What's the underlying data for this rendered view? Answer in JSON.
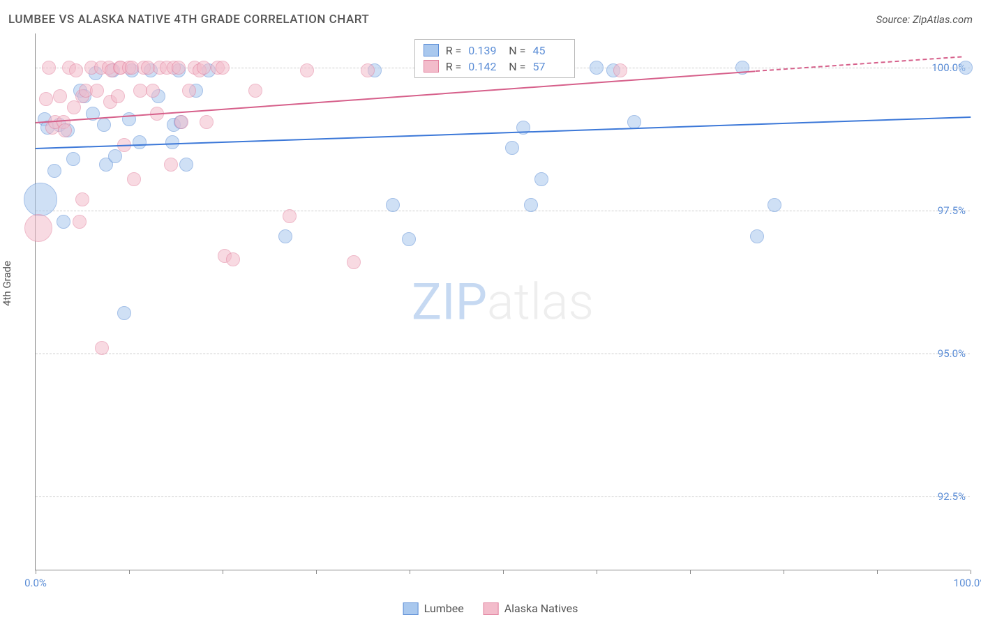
{
  "title": "LUMBEE VS ALASKA NATIVE 4TH GRADE CORRELATION CHART",
  "source": "Source: ZipAtlas.com",
  "ylabel": "4th Grade",
  "watermark_a": "ZIP",
  "watermark_b": "atlas",
  "chart": {
    "type": "scatter",
    "xlim": [
      0,
      100
    ],
    "ylim": [
      91.2,
      100.6
    ],
    "ytick_values": [
      92.5,
      95.0,
      97.5,
      100.0
    ],
    "ytick_labels": [
      "92.5%",
      "95.0%",
      "97.5%",
      "100.0%"
    ],
    "xtick_values": [
      0,
      10,
      20,
      30,
      40,
      50,
      60,
      70,
      80,
      90,
      100
    ],
    "xtick_labels_shown": {
      "0": "0.0%",
      "100": "100.0%"
    },
    "background_color": "#ffffff",
    "grid_color": "#cccccc",
    "axis_color": "#888888",
    "tick_label_color": "#5b8dd6",
    "series": [
      {
        "name": "Lumbee",
        "fill": "#a9c8ee",
        "stroke": "#5b8dd6",
        "fill_opacity": 0.55,
        "default_r": 10,
        "trend": {
          "x1": 0,
          "y1": 98.6,
          "x2": 100,
          "y2": 99.15,
          "color": "#3c78d8",
          "width": 2
        },
        "R": "0.139",
        "N": "45",
        "points": [
          {
            "x": 0.5,
            "y": 97.7,
            "r": 24
          },
          {
            "x": 1,
            "y": 99.1
          },
          {
            "x": 1.3,
            "y": 98.95
          },
          {
            "x": 2,
            "y": 98.2
          },
          {
            "x": 2.5,
            "y": 99.0
          },
          {
            "x": 3,
            "y": 97.3
          },
          {
            "x": 3.4,
            "y": 98.9
          },
          {
            "x": 4,
            "y": 98.4
          },
          {
            "x": 4.8,
            "y": 99.6
          },
          {
            "x": 5.2,
            "y": 99.5
          },
          {
            "x": 6.1,
            "y": 99.2
          },
          {
            "x": 6.4,
            "y": 99.9
          },
          {
            "x": 7.3,
            "y": 99.0
          },
          {
            "x": 7.5,
            "y": 98.3
          },
          {
            "x": 8.3,
            "y": 99.95
          },
          {
            "x": 8.5,
            "y": 98.45
          },
          {
            "x": 9.5,
            "y": 95.7
          },
          {
            "x": 10.0,
            "y": 99.1
          },
          {
            "x": 10.3,
            "y": 99.95
          },
          {
            "x": 11.1,
            "y": 98.7
          },
          {
            "x": 12.3,
            "y": 99.95
          },
          {
            "x": 13.1,
            "y": 99.5
          },
          {
            "x": 14.6,
            "y": 98.7
          },
          {
            "x": 14.8,
            "y": 99.0
          },
          {
            "x": 15.3,
            "y": 99.95
          },
          {
            "x": 15.5,
            "y": 99.05
          },
          {
            "x": 16.1,
            "y": 98.3
          },
          {
            "x": 17.2,
            "y": 99.6
          },
          {
            "x": 18.5,
            "y": 99.95
          },
          {
            "x": 26.7,
            "y": 97.05
          },
          {
            "x": 36.3,
            "y": 99.95
          },
          {
            "x": 38.2,
            "y": 97.6
          },
          {
            "x": 39.9,
            "y": 97.0
          },
          {
            "x": 51.0,
            "y": 98.6
          },
          {
            "x": 52.2,
            "y": 98.95
          },
          {
            "x": 53.0,
            "y": 97.6
          },
          {
            "x": 54.1,
            "y": 98.05
          },
          {
            "x": 60.0,
            "y": 100.0
          },
          {
            "x": 61.8,
            "y": 99.95
          },
          {
            "x": 64.0,
            "y": 99.05
          },
          {
            "x": 75.6,
            "y": 100.0
          },
          {
            "x": 77.2,
            "y": 97.05
          },
          {
            "x": 79.0,
            "y": 97.6
          },
          {
            "x": 99.5,
            "y": 100.0
          }
        ]
      },
      {
        "name": "Alaska Natives",
        "fill": "#f3bccb",
        "stroke": "#e2819e",
        "fill_opacity": 0.55,
        "default_r": 10,
        "trend": {
          "x1": 0,
          "y1": 99.05,
          "x2": 77,
          "y2": 99.95,
          "color": "#d65f8a",
          "width": 2,
          "dash_x2": 99,
          "dash_y2": 100.2
        },
        "R": "0.142",
        "N": "57",
        "points": [
          {
            "x": 0.3,
            "y": 97.2,
            "r": 20
          },
          {
            "x": 1.1,
            "y": 99.45
          },
          {
            "x": 1.4,
            "y": 100.0
          },
          {
            "x": 1.8,
            "y": 98.95
          },
          {
            "x": 2.1,
            "y": 99.05
          },
          {
            "x": 2.6,
            "y": 99.5
          },
          {
            "x": 3.0,
            "y": 99.05
          },
          {
            "x": 3.1,
            "y": 98.9
          },
          {
            "x": 3.6,
            "y": 100.0
          },
          {
            "x": 4.1,
            "y": 99.3
          },
          {
            "x": 4.3,
            "y": 99.95
          },
          {
            "x": 4.7,
            "y": 97.3
          },
          {
            "x": 5.0,
            "y": 97.7
          },
          {
            "x": 5.0,
            "y": 99.5
          },
          {
            "x": 5.4,
            "y": 99.6
          },
          {
            "x": 6.0,
            "y": 100.0
          },
          {
            "x": 6.6,
            "y": 99.6
          },
          {
            "x": 7.0,
            "y": 100.0
          },
          {
            "x": 7.1,
            "y": 95.1
          },
          {
            "x": 7.8,
            "y": 100.0
          },
          {
            "x": 8.0,
            "y": 99.4
          },
          {
            "x": 8.1,
            "y": 99.95
          },
          {
            "x": 8.8,
            "y": 99.5
          },
          {
            "x": 9.0,
            "y": 100.0
          },
          {
            "x": 9.1,
            "y": 100.0
          },
          {
            "x": 9.5,
            "y": 98.65
          },
          {
            "x": 10.0,
            "y": 100.0
          },
          {
            "x": 10.3,
            "y": 100.0
          },
          {
            "x": 10.5,
            "y": 98.05
          },
          {
            "x": 11.2,
            "y": 99.6
          },
          {
            "x": 11.6,
            "y": 100.0
          },
          {
            "x": 12.0,
            "y": 100.0
          },
          {
            "x": 12.5,
            "y": 99.6
          },
          {
            "x": 13.0,
            "y": 99.2
          },
          {
            "x": 13.3,
            "y": 100.0
          },
          {
            "x": 14.0,
            "y": 100.0
          },
          {
            "x": 14.5,
            "y": 98.3
          },
          {
            "x": 14.8,
            "y": 100.0
          },
          {
            "x": 15.3,
            "y": 100.0
          },
          {
            "x": 15.6,
            "y": 99.05
          },
          {
            "x": 16.4,
            "y": 99.6
          },
          {
            "x": 17.0,
            "y": 100.0
          },
          {
            "x": 17.5,
            "y": 99.95
          },
          {
            "x": 18.0,
            "y": 100.0
          },
          {
            "x": 18.3,
            "y": 99.05
          },
          {
            "x": 19.5,
            "y": 100.0
          },
          {
            "x": 20.0,
            "y": 100.0
          },
          {
            "x": 20.2,
            "y": 96.7
          },
          {
            "x": 21.1,
            "y": 96.65
          },
          {
            "x": 23.5,
            "y": 99.6
          },
          {
            "x": 27.2,
            "y": 97.4
          },
          {
            "x": 29.0,
            "y": 99.95
          },
          {
            "x": 34.0,
            "y": 96.6
          },
          {
            "x": 35.5,
            "y": 99.95
          },
          {
            "x": 42.5,
            "y": 99.95
          },
          {
            "x": 62.5,
            "y": 99.95
          }
        ]
      }
    ],
    "stats_box": {
      "left_pct": 40.5,
      "top_pct": 1.0
    },
    "legend": {
      "items": [
        "Lumbee",
        "Alaska Natives"
      ]
    }
  }
}
